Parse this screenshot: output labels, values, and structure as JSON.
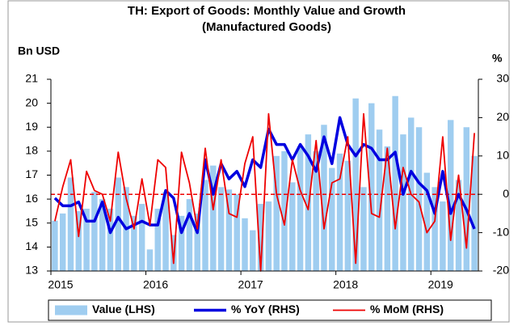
{
  "chart_data": {
    "type": "combo",
    "title": "TH: Export of Goods: Monthly Value and Growth",
    "subtitle": "(Manufactured Goods)",
    "y_label": "Bn USD",
    "y2_label": "%",
    "categories": [
      "2015",
      null,
      null,
      null,
      null,
      null,
      null,
      null,
      null,
      null,
      null,
      null,
      "2016",
      null,
      null,
      null,
      null,
      null,
      null,
      null,
      null,
      null,
      null,
      null,
      "2017",
      null,
      null,
      null,
      null,
      null,
      null,
      null,
      null,
      null,
      null,
      null,
      "2018",
      null,
      null,
      null,
      null,
      null,
      null,
      null,
      null,
      null,
      null,
      null,
      "2019",
      null,
      null,
      null,
      null,
      null
    ],
    "series": [
      {
        "name": "Value (LHS)",
        "type": "bar",
        "axis": "y",
        "color": "#9fcdf0",
        "values": [
          15.1,
          15.4,
          16.9,
          15.5,
          15.6,
          16.3,
          16.0,
          15.6,
          16.9,
          16.5,
          15.3,
          15.8,
          13.9,
          15.6,
          16.3,
          14.5,
          15.3,
          16.0,
          15.4,
          16.8,
          17.4,
          16.5,
          16.4,
          16.2,
          15.2,
          14.7,
          15.8,
          15.9,
          17.8,
          18.0,
          16.7,
          18.2,
          18.7,
          18.0,
          19.1,
          17.3,
          17.9,
          17.6,
          20.2,
          16.5,
          20.0,
          18.9,
          18.2,
          20.3,
          18.7,
          19.4,
          19.0,
          17.1,
          16.5,
          15.9,
          19.3,
          16.8,
          19.0,
          17.8
        ]
      },
      {
        "name": "% YoY (RHS)",
        "type": "line",
        "axis": "y2",
        "color": "#0000e0",
        "width": 3.5,
        "values": [
          -1,
          -3,
          -3,
          -2,
          -7,
          -7,
          -2,
          -10,
          -6,
          -9,
          -8,
          -7,
          -8,
          -8,
          1,
          -1,
          -10,
          -5,
          -10,
          9,
          0,
          8,
          4,
          6,
          2,
          9,
          7,
          17,
          13,
          13,
          9,
          13,
          10,
          6,
          15,
          8,
          20,
          13,
          10,
          13,
          12,
          9,
          9,
          11,
          0,
          6,
          3,
          1,
          -5,
          6,
          -5,
          0,
          -4,
          -9
        ]
      },
      {
        "name": "% MoM (RHS)",
        "type": "line",
        "axis": "y2",
        "color": "#ee0000",
        "width": 1.8,
        "values": [
          -7,
          2,
          9,
          -11,
          6,
          1,
          0,
          -7,
          11,
          -1,
          -9,
          4,
          -8,
          9,
          7,
          -18,
          11,
          3,
          -9,
          12,
          -4,
          9,
          -5,
          -6,
          8,
          15,
          -20,
          21,
          0,
          -8,
          9,
          1,
          -4,
          14,
          -9,
          3,
          4,
          15,
          -18,
          21,
          -5,
          -6,
          12,
          -9,
          7,
          0,
          -2,
          -10,
          -7,
          15,
          -12,
          5,
          -14,
          16
        ]
      }
    ],
    "ylim": [
      13,
      21
    ],
    "yticks": [
      13,
      14,
      15,
      16,
      17,
      18,
      19,
      20,
      21
    ],
    "y2lim": [
      -20,
      30
    ],
    "y2ticks": [
      -20,
      -10,
      0,
      10,
      20,
      30
    ],
    "reference_line": {
      "value": 0,
      "axis": "y2",
      "color": "#ee0000"
    },
    "legend": "bottom"
  }
}
